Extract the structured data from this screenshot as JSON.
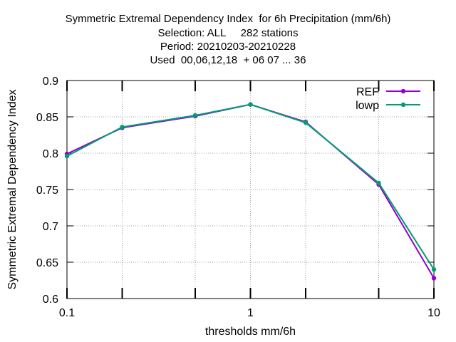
{
  "chart_data": {
    "type": "line",
    "title_lines": [
      "Symmetric Extremal Dependency Index  for 6h Precipitation (mm/6h)",
      "Selection: ALL     282 stations",
      "Period: 20210203-20210228",
      "Used  00,06,12,18  + 06 07 ... 36"
    ],
    "xlabel": "thresholds mm/6h",
    "ylabel": "Symmetric Extremal Dependency Index",
    "x_scale": "log",
    "xlim": [
      0.1,
      10
    ],
    "ylim": [
      0.6,
      0.9
    ],
    "x_ticks": [
      0.1,
      1,
      10
    ],
    "x_tick_labels": [
      "0.1",
      "1",
      "10"
    ],
    "x_minor_ticks": [
      0.2,
      0.5,
      2,
      5
    ],
    "y_ticks": [
      0.6,
      0.65,
      0.7,
      0.75,
      0.8,
      0.85,
      0.9
    ],
    "y_tick_labels": [
      "0.6",
      "0.65",
      "0.7",
      "0.75",
      "0.8",
      "0.85",
      "0.9"
    ],
    "grid": true,
    "legend_position": "top-right",
    "x": [
      0.1,
      0.2,
      0.5,
      1,
      2,
      5,
      10
    ],
    "series": [
      {
        "name": "REF",
        "color": "#9400d3",
        "values": [
          0.799,
          0.835,
          0.851,
          0.867,
          0.843,
          0.757,
          0.628
        ]
      },
      {
        "name": "lowp",
        "color": "#009e73",
        "values": [
          0.796,
          0.836,
          0.852,
          0.867,
          0.842,
          0.759,
          0.64
        ]
      }
    ]
  }
}
